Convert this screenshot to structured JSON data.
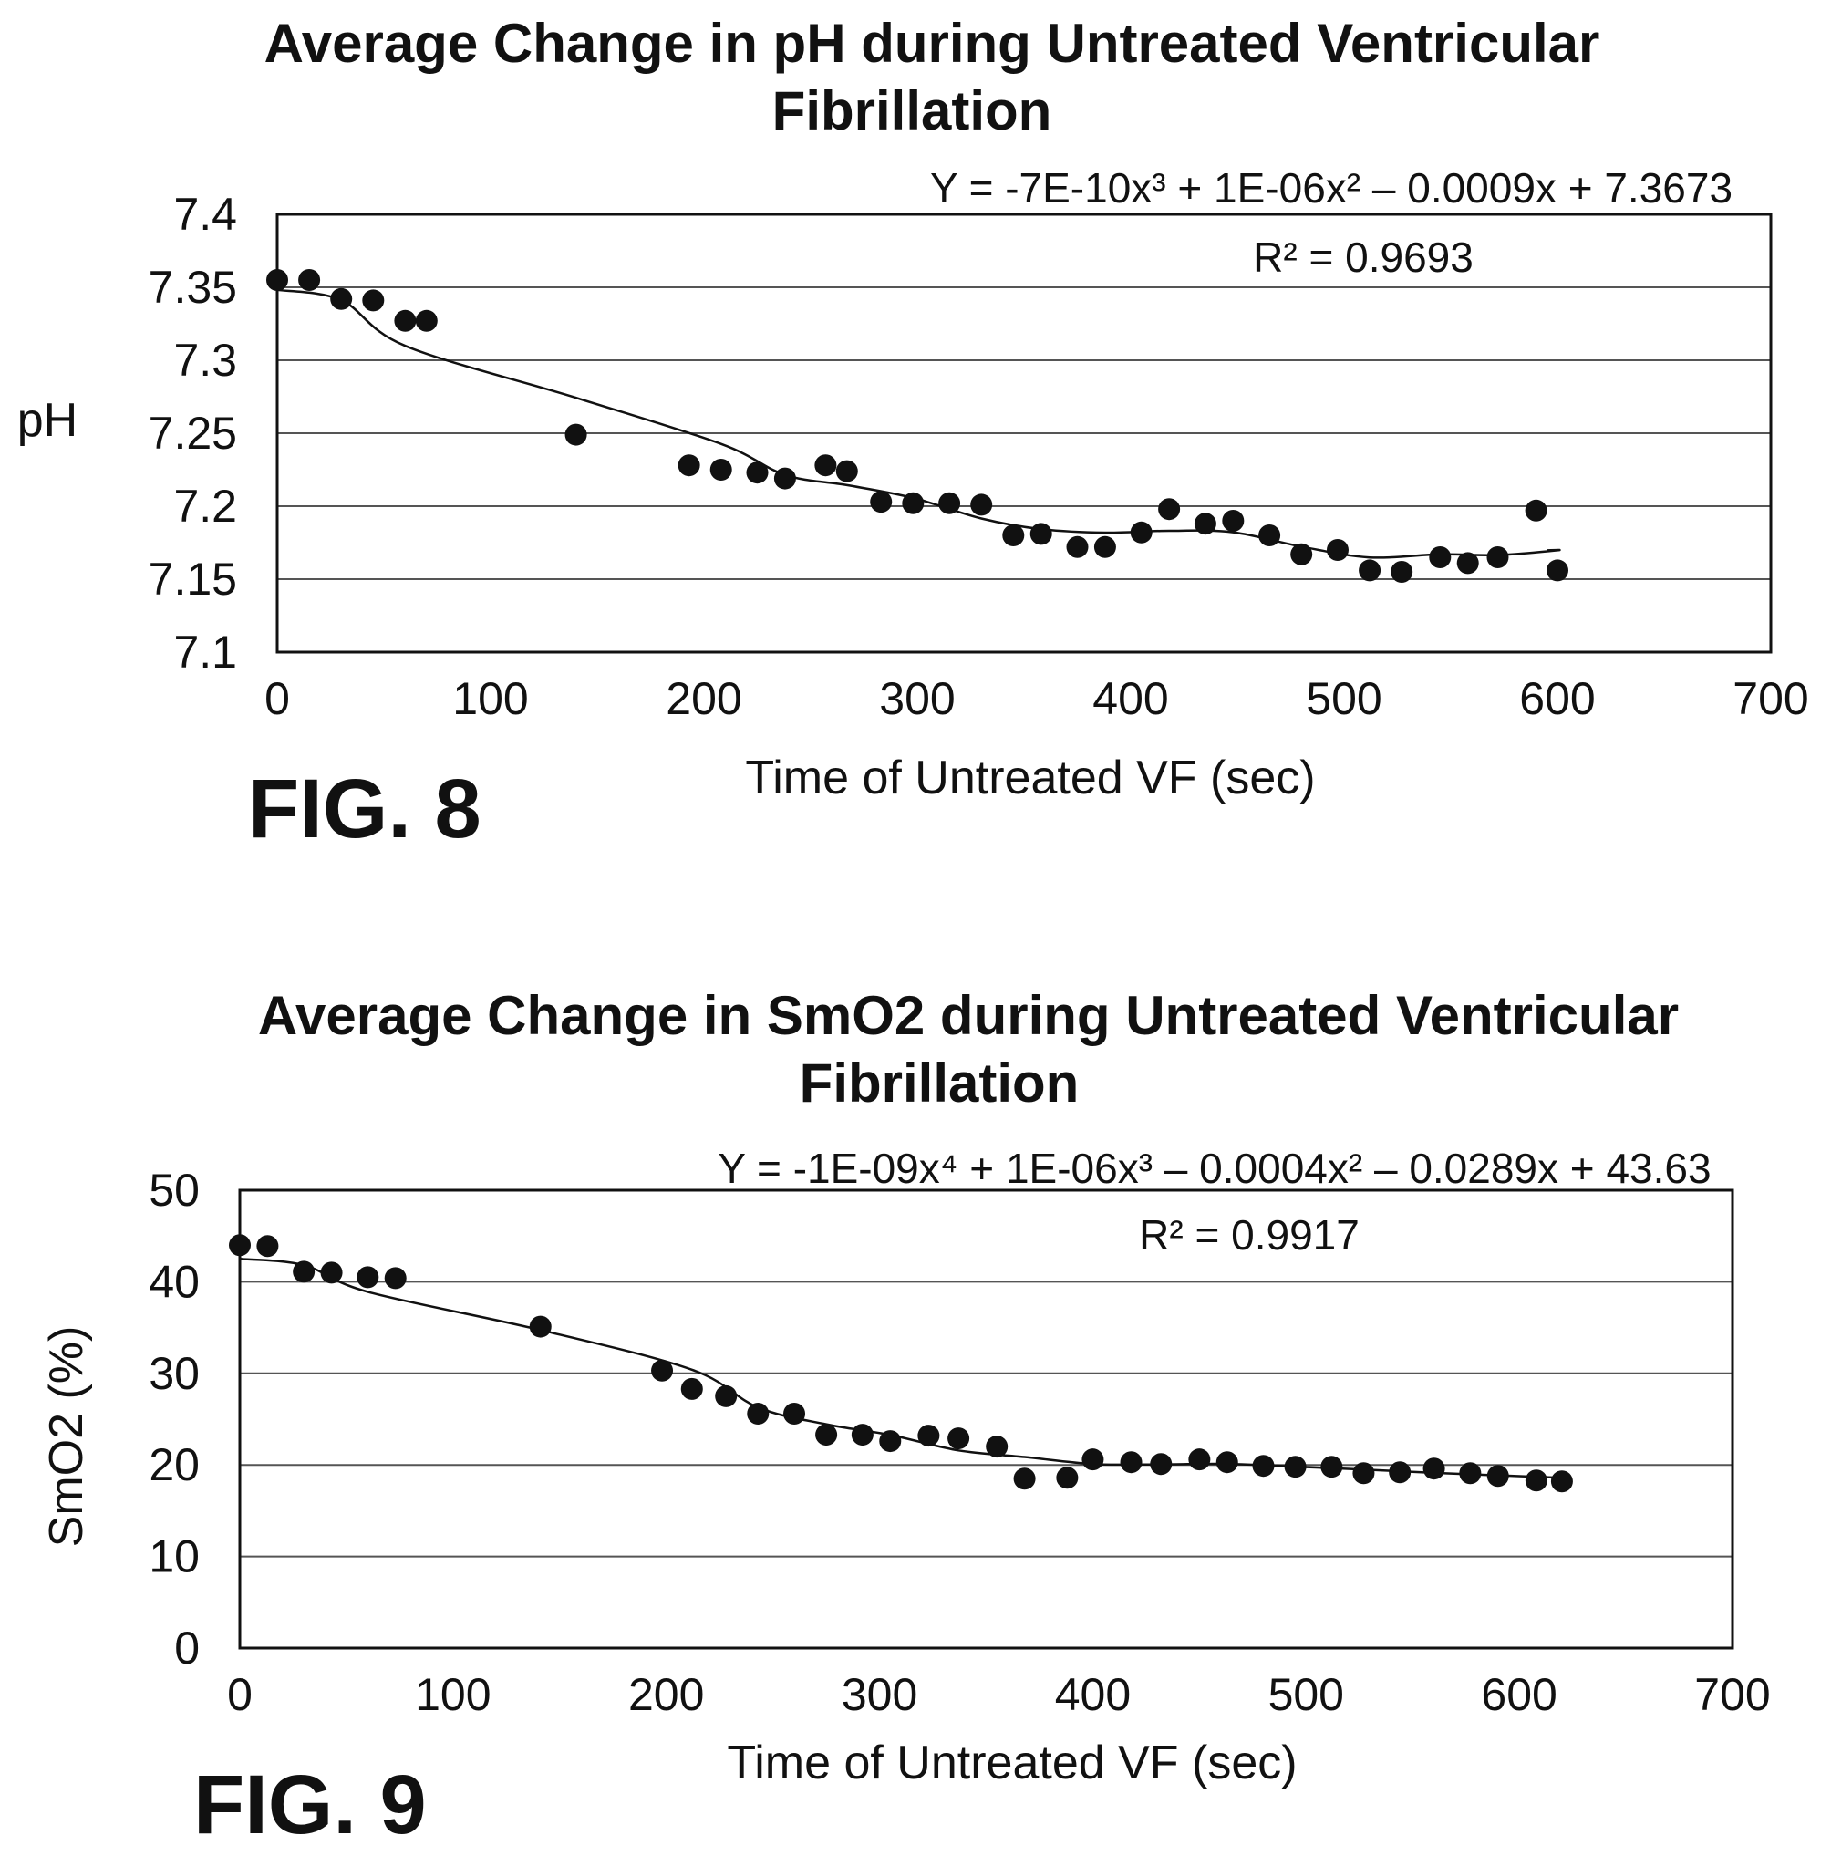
{
  "chart_data": [
    {
      "type": "scatter",
      "figure_label": "FIG. 8",
      "title_line1": "Average Change in pH during Untreated Ventricular",
      "title_line2": "Fibrillation",
      "xlabel": "Time of Untreated VF (sec)",
      "ylabel": "pH",
      "xlim": [
        0,
        700
      ],
      "ylim": [
        7.1,
        7.4
      ],
      "xticks": [
        0,
        100,
        200,
        300,
        400,
        500,
        600,
        700
      ],
      "yticks": [
        7.1,
        7.15,
        7.2,
        7.25,
        7.3,
        7.35,
        7.4
      ],
      "xtick_labels": [
        "0",
        "100",
        "200",
        "300",
        "400",
        "500",
        "600",
        "700"
      ],
      "ytick_labels": [
        "7.1",
        "7.15",
        "7.2",
        "7.25",
        "7.3",
        "7.35",
        "7.4"
      ],
      "grid": true,
      "trendline": {
        "equation": "Y = -7E-10x³ + 1E-06x² – 0.0009x + 7.3673",
        "r_squared": "R² = 0.9693"
      },
      "points": [
        [
          0,
          7.355
        ],
        [
          15,
          7.355
        ],
        [
          30,
          7.342
        ],
        [
          45,
          7.341
        ],
        [
          60,
          7.327
        ],
        [
          70,
          7.327
        ],
        [
          140,
          7.249
        ],
        [
          193,
          7.228
        ],
        [
          208,
          7.225
        ],
        [
          225,
          7.223
        ],
        [
          238,
          7.219
        ],
        [
          257,
          7.228
        ],
        [
          267,
          7.224
        ],
        [
          283,
          7.203
        ],
        [
          298,
          7.202
        ],
        [
          315,
          7.202
        ],
        [
          330,
          7.201
        ],
        [
          345,
          7.18
        ],
        [
          358,
          7.181
        ],
        [
          375,
          7.172
        ],
        [
          388,
          7.172
        ],
        [
          405,
          7.182
        ],
        [
          418,
          7.198
        ],
        [
          435,
          7.188
        ],
        [
          448,
          7.19
        ],
        [
          465,
          7.18
        ],
        [
          480,
          7.167
        ],
        [
          497,
          7.17
        ],
        [
          512,
          7.156
        ],
        [
          527,
          7.155
        ],
        [
          545,
          7.165
        ],
        [
          558,
          7.161
        ],
        [
          572,
          7.165
        ],
        [
          590,
          7.197
        ],
        [
          600,
          7.156
        ]
      ]
    },
    {
      "type": "scatter",
      "figure_label": "FIG. 9",
      "title_line1": "Average Change in SmO2 during Untreated Ventricular",
      "title_line2": "Fibrillation",
      "xlabel": "Time of Untreated VF (sec)",
      "ylabel": "SmO2 (%)",
      "xlim": [
        0,
        700
      ],
      "ylim": [
        0,
        50
      ],
      "xticks": [
        0,
        100,
        200,
        300,
        400,
        500,
        600,
        700
      ],
      "yticks": [
        0,
        10,
        20,
        30,
        40,
        50
      ],
      "xtick_labels": [
        "0",
        "100",
        "200",
        "300",
        "400",
        "500",
        "600",
        "700"
      ],
      "ytick_labels": [
        "0",
        "10",
        "20",
        "30",
        "40",
        "50"
      ],
      "grid": true,
      "trendline": {
        "equation": "Y = -1E-09x⁴ + 1E-06x³ – 0.0004x² – 0.0289x + 43.63",
        "r_squared": "R² = 0.9917"
      },
      "points": [
        [
          0,
          44.0
        ],
        [
          13,
          43.9
        ],
        [
          30,
          41.1
        ],
        [
          43,
          41.0
        ],
        [
          60,
          40.5
        ],
        [
          73,
          40.4
        ],
        [
          141,
          35.1
        ],
        [
          198,
          30.3
        ],
        [
          212,
          28.3
        ],
        [
          228,
          27.5
        ],
        [
          243,
          25.6
        ],
        [
          260,
          25.6
        ],
        [
          275,
          23.3
        ],
        [
          292,
          23.3
        ],
        [
          305,
          22.6
        ],
        [
          323,
          23.2
        ],
        [
          337,
          22.9
        ],
        [
          355,
          22.0
        ],
        [
          368,
          18.5
        ],
        [
          388,
          18.6
        ],
        [
          400,
          20.6
        ],
        [
          418,
          20.3
        ],
        [
          432,
          20.1
        ],
        [
          450,
          20.6
        ],
        [
          463,
          20.3
        ],
        [
          480,
          19.9
        ],
        [
          495,
          19.8
        ],
        [
          512,
          19.8
        ],
        [
          527,
          19.1
        ],
        [
          544,
          19.2
        ],
        [
          560,
          19.6
        ],
        [
          577,
          19.1
        ],
        [
          590,
          18.8
        ],
        [
          608,
          18.3
        ],
        [
          620,
          18.2
        ]
      ]
    }
  ]
}
